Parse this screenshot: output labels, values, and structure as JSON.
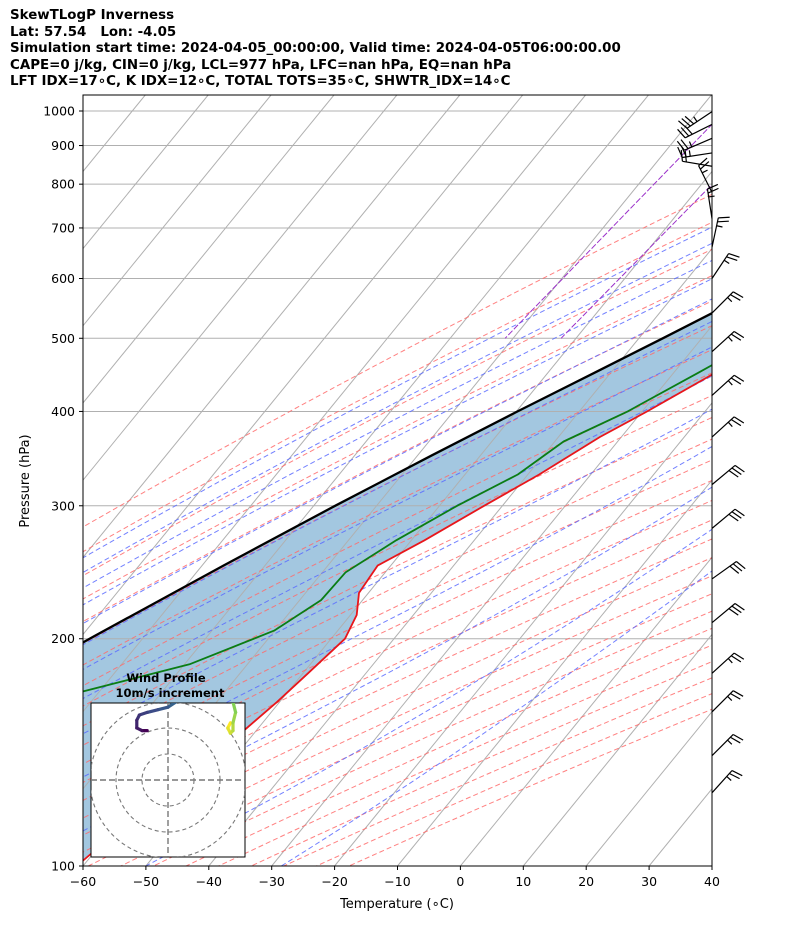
{
  "header": {
    "line1": "SkewTLogP Inverness",
    "line2": "Lat: 57.54   Lon: -4.05",
    "line3": "Simulation start time: 2024-04-05_00:00:00, Valid time: 2024-04-05T06:00:00.00",
    "line4": "CAPE=0 j/kg, CIN=0 j/kg, LCL=977 hPa, LFC=nan hPa, EQ=nan hPa",
    "line5": "LFT IDX=17∘C, K IDX=12∘C, TOTAL TOTS=35∘C, SHWTR_IDX=14∘C"
  },
  "axes": {
    "xlabel": "Temperature (∘C)",
    "ylabel": "Pressure (hPa)"
  },
  "inset": {
    "title": "Wind Profile",
    "subtitle": "10m/s increment"
  },
  "colors": {
    "temperature": "#e8161b",
    "dewpoint": "#0a7d14",
    "parcel": "#000000",
    "shade": "#a3c7e0",
    "dry_adiabat": "#ff6b6b",
    "moist_adiabat": "#5a6bff",
    "mixing_ratio": "#9b30c9",
    "isotherm": "#b0b0b0"
  },
  "chart_data": {
    "type": "line",
    "title": "SkewTLogP Inverness",
    "xlabel": "Temperature (∘C)",
    "ylabel": "Pressure (hPa)",
    "xlim": [
      -60,
      40
    ],
    "ylim": [
      1050,
      100
    ],
    "yscale": "log",
    "skewed": true,
    "grid": true,
    "x_ticks": [
      "−60",
      "−50",
      "−40",
      "−30",
      "−20",
      "−10",
      "0",
      "10",
      "20",
      "30",
      "40"
    ],
    "y_ticks": [
      "100",
      "200",
      "300",
      "400",
      "500",
      "600",
      "700",
      "800",
      "900",
      "1000"
    ],
    "series": [
      {
        "name": "temperature",
        "points": [
          {
            "p": 985,
            "t": 2.9
          },
          {
            "p": 950,
            "t": 2.8
          },
          {
            "p": 900,
            "t": 1.9
          },
          {
            "p": 850,
            "t": 1.2
          },
          {
            "p": 800,
            "t": -0.1
          },
          {
            "p": 750,
            "t": -1.9
          },
          {
            "p": 700,
            "t": -4.2
          },
          {
            "p": 650,
            "t": -7.1
          },
          {
            "p": 600,
            "t": -10.3
          },
          {
            "p": 550,
            "t": -14.1
          },
          {
            "p": 500,
            "t": -18.3
          },
          {
            "p": 450,
            "t": -23.4
          },
          {
            "p": 400,
            "t": -29.2
          },
          {
            "p": 370,
            "t": -33.4
          },
          {
            "p": 330,
            "t": -38.2
          },
          {
            "p": 300,
            "t": -42.9
          },
          {
            "p": 270,
            "t": -47.9
          },
          {
            "p": 250,
            "t": -52.1
          },
          {
            "p": 230,
            "t": -51.5
          },
          {
            "p": 215,
            "t": -49.0
          },
          {
            "p": 200,
            "t": -47.8
          },
          {
            "p": 180,
            "t": -49.2
          },
          {
            "p": 165,
            "t": -50.4
          },
          {
            "p": 150,
            "t": -52.1
          },
          {
            "p": 135,
            "t": -54.6
          },
          {
            "p": 120,
            "t": -57.6
          },
          {
            "p": 100,
            "t": -61.0
          }
        ]
      },
      {
        "name": "dewpoint",
        "points": [
          {
            "p": 985,
            "t": 2.0
          },
          {
            "p": 950,
            "t": 1.0
          },
          {
            "p": 900,
            "t": -0.6
          },
          {
            "p": 850,
            "t": -2.1
          },
          {
            "p": 800,
            "t": -3.5
          },
          {
            "p": 750,
            "t": -4.2
          },
          {
            "p": 700,
            "t": -5.8
          },
          {
            "p": 650,
            "t": -8.8
          },
          {
            "p": 600,
            "t": -12.4
          },
          {
            "p": 550,
            "t": -16.3
          },
          {
            "p": 500,
            "t": -20.7
          },
          {
            "p": 450,
            "t": -26.1
          },
          {
            "p": 400,
            "t": -32.3
          },
          {
            "p": 365,
            "t": -38.6
          },
          {
            "p": 330,
            "t": -41.6
          },
          {
            "p": 300,
            "t": -47.2
          },
          {
            "p": 270,
            "t": -52.4
          },
          {
            "p": 245,
            "t": -56.3
          },
          {
            "p": 225,
            "t": -56.6
          },
          {
            "p": 205,
            "t": -60.1
          },
          {
            "p": 185,
            "t": -69.2
          },
          {
            "p": 170,
            "t": -82.9
          },
          {
            "p": 150,
            "t": -83.8
          },
          {
            "p": 130,
            "t": -83.8
          },
          {
            "p": 115,
            "t": -85.9
          },
          {
            "p": 100,
            "t": -88.5
          }
        ]
      },
      {
        "name": "parcel",
        "points": [
          {
            "p": 985,
            "t": 2.9
          },
          {
            "p": 950,
            "t": -0.2
          },
          {
            "p": 900,
            "t": -3.1
          },
          {
            "p": 850,
            "t": -6.1
          },
          {
            "p": 800,
            "t": -9.3
          },
          {
            "p": 750,
            "t": -12.7
          },
          {
            "p": 700,
            "t": -16.5
          },
          {
            "p": 650,
            "t": -20.7
          },
          {
            "p": 600,
            "t": -25.3
          },
          {
            "p": 550,
            "t": -30.5
          },
          {
            "p": 500,
            "t": -36.2
          },
          {
            "p": 450,
            "t": -42.6
          },
          {
            "p": 400,
            "t": -49.8
          },
          {
            "p": 350,
            "t": -57.7
          },
          {
            "p": 300,
            "t": -66.6
          },
          {
            "p": 250,
            "t": -76.6
          },
          {
            "p": 200,
            "t": -88.4
          },
          {
            "p": 150,
            "t": -103.1
          },
          {
            "p": 100,
            "t": -122.9
          }
        ]
      }
    ],
    "wind_barbs": [
      {
        "p": 998,
        "u": 15,
        "v": 10
      },
      {
        "p": 960,
        "u": 16,
        "v": 8
      },
      {
        "p": 920,
        "u": 14,
        "v": 6
      },
      {
        "p": 880,
        "u": 13,
        "v": 2
      },
      {
        "p": 845,
        "u": 12,
        "v": -2
      },
      {
        "p": 780,
        "u": 6,
        "v": -12
      },
      {
        "p": 720,
        "u": 2,
        "v": -13
      },
      {
        "p": 660,
        "u": -3,
        "v": -14
      },
      {
        "p": 600,
        "u": -8,
        "v": -12
      },
      {
        "p": 540,
        "u": -10,
        "v": -10
      },
      {
        "p": 480,
        "u": -11,
        "v": -10
      },
      {
        "p": 420,
        "u": -11,
        "v": -10
      },
      {
        "p": 370,
        "u": -11,
        "v": -10
      },
      {
        "p": 320,
        "u": -12,
        "v": -10
      },
      {
        "p": 280,
        "u": -12,
        "v": -10
      },
      {
        "p": 240,
        "u": -14,
        "v": -10
      },
      {
        "p": 210,
        "u": -12,
        "v": -10
      },
      {
        "p": 180,
        "u": -11,
        "v": -10
      },
      {
        "p": 160,
        "u": -10,
        "v": -10
      },
      {
        "p": 140,
        "u": -10,
        "v": -10
      },
      {
        "p": 125,
        "u": -9,
        "v": -10
      }
    ],
    "hodograph": {
      "rings": [
        10,
        20,
        30
      ],
      "points": [
        {
          "u": 24,
          "v": 22
        },
        {
          "u": 23,
          "v": 20
        },
        {
          "u": 24,
          "v": 18
        },
        {
          "u": 25,
          "v": 19
        },
        {
          "u": 25,
          "v": 22
        },
        {
          "u": 26,
          "v": 26
        },
        {
          "u": 25,
          "v": 30
        },
        {
          "u": 22,
          "v": 31
        },
        {
          "u": 21,
          "v": 33
        },
        {
          "u": 22,
          "v": 36
        },
        {
          "u": 21,
          "v": 38
        },
        {
          "u": 19,
          "v": 38
        },
        {
          "u": 17,
          "v": 36
        },
        {
          "u": 15,
          "v": 33
        },
        {
          "u": 13,
          "v": 31
        },
        {
          "u": 11,
          "v": 31
        },
        {
          "u": 9,
          "v": 32
        },
        {
          "u": 6,
          "v": 32
        },
        {
          "u": 3,
          "v": 30
        },
        {
          "u": 0,
          "v": 28
        },
        {
          "u": -4,
          "v": 27
        },
        {
          "u": -8,
          "v": 26
        },
        {
          "u": -11,
          "v": 25
        },
        {
          "u": -12,
          "v": 23
        },
        {
          "u": -12,
          "v": 20
        },
        {
          "u": -10,
          "v": 19
        },
        {
          "u": -9,
          "v": 19
        },
        {
          "u": -8,
          "v": 19
        }
      ]
    }
  }
}
